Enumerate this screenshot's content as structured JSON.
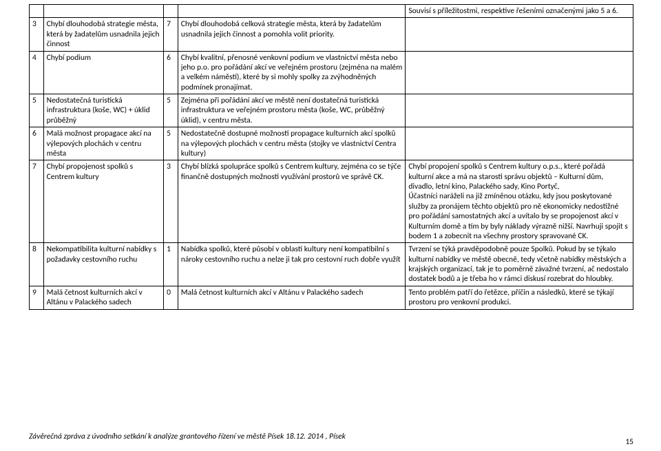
{
  "rows": [
    {
      "n": "",
      "label": "",
      "pts": "",
      "desc": "",
      "comment": "Souvisí s příležitostmi, respektive řešeními označenými jako 5 a 6."
    },
    {
      "n": "3",
      "label": "Chybí dlouhodobá strategie města, která by žadatelům usnadnila jejich činnost",
      "pts": "7",
      "desc": "Chybí dlouhodobá celková strategie města, která by žadatelům usnadnila jejich činnost a pomohla volit priority.",
      "comment": ""
    },
    {
      "n": "4",
      "label": "Chybí podium",
      "pts": "6",
      "desc": "Chybí kvalitní, přenosné venkovní podium ve vlastnictví města nebo jeho p.o. pro pořádání akcí ve veřejném prostoru (zejména na malém a velkém náměstí), které by si mohly spolky za zvýhodněných podmínek pronajímat.",
      "comment": ""
    },
    {
      "n": "5",
      "label": "Nedostatečná turistická infrastruktura (koše, WC) + úklid průběžný",
      "pts": "5",
      "desc": "Zejména při pořádání akcí ve městě není dostatečná turistická infrastruktura ve veřejném prostoru města (koše, WC, průběžný úklid), v centru města.",
      "comment": ""
    },
    {
      "n": "6",
      "label": "Malá možnost propagace akcí na výlepových plochách v centru města",
      "pts": "5",
      "desc": "Nedostatečně dostupné možnosti propagace kulturních akcí spolků na výlepových plochách v centru města (stojky ve vlastnictví Centra kultury)",
      "comment": ""
    },
    {
      "n": "7",
      "label": "Chybí propojenost spolků s Centrem kultury",
      "pts": "3",
      "desc": "Chybí blízká spolupráce spolků s Centrem kultury, zejména co se týče finančně dostupných možnosti využívání prostorů ve správě CK.",
      "comment": "Chybí propojení spolků s Centrem kultury o.p.s., které pořádá kulturní akce a má na starosti správu objektů – Kulturní dům, divadlo, letní kino, Palackého sady, Kino Portyč,\nÚčastníci naráželi na již zmíněnou otázku, kdy jsou poskytované služby za pronájem těchto objektů pro ně ekonomicky nedostižné pro pořádání samostatných akcí a uvítalo by se propojenost akcí v Kulturním domě a tím by byly náklady výrazně nižší. Navrhuji spojit s bodem 1 a zobecnit na všechny prostory spravované CK."
    },
    {
      "n": "8",
      "label": "Nekompatibilita kulturní nabídky s požadavky cestovního ruchu",
      "pts": "1",
      "desc": "Nabídka spolků, které působí v oblasti kultury není kompatibilní s nároky cestovního ruchu a nelze ji tak pro cestovní ruch dobře využít",
      "comment": "Tvrzení se týká pravděpodobně pouze Spolků. Pokud by se týkalo kulturní nabídky ve městě obecně, tedy včetně nabídky městských a krajských organizací, tak je to poměrně závažné tvrzení, ač nedostalo dostatek bodů a je třeba ho v rámci diskusí rozebrat do hloubky."
    },
    {
      "n": "9",
      "label": "Malá četnost kulturních akcí v Altánu v Palackého sadech",
      "pts": "0",
      "desc": "Malá četnost kulturních akcí v Altánu v Palackého sadech",
      "comment": "Tento problém patří do řetězce, příčin a následků, které se týkají prostoru pro venkovní produkci."
    }
  ],
  "footer": "Závěrečná zpráva z úvodního setkání k analýze grantového řízení ve městě Písek 18.12. 2014 , Písek",
  "page": "15"
}
